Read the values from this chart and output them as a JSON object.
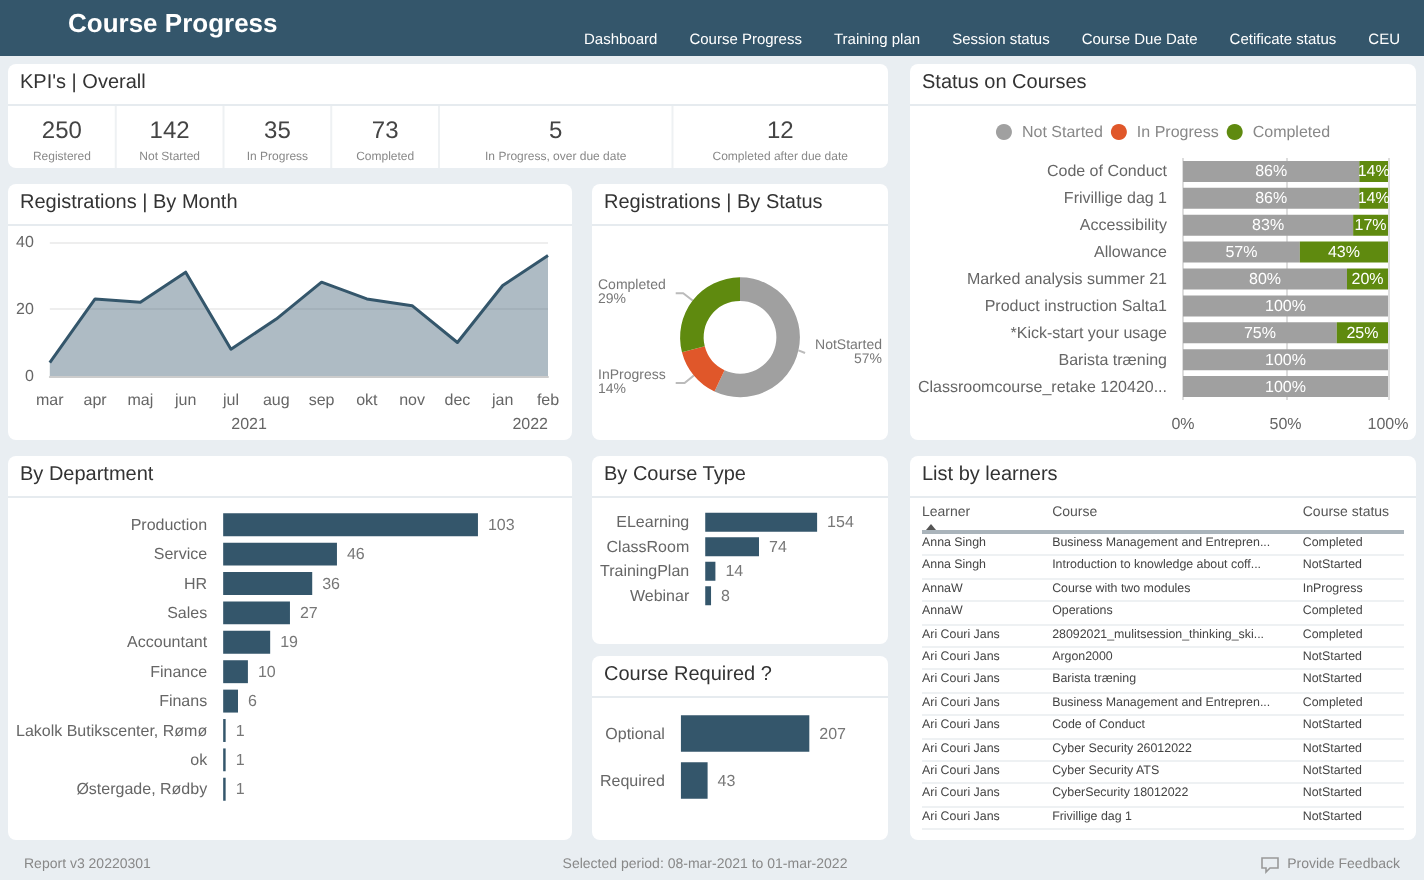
{
  "chart_data": [
    {
      "type": "other",
      "title": "Course Progress",
      "annotations": [
        "Dashboard",
        "Course Progress",
        "Training plan",
        "Session status",
        "Course Due Date",
        "Cetificate status",
        "CEU"
      ]
    },
    {
      "type": "other",
      "title": "KPI's | Overall",
      "categories": [
        "Registered",
        "Not Started",
        "In Progress",
        "Completed",
        "In Progress, over due date",
        "Completed after due date"
      ],
      "values": [
        250,
        142,
        35,
        73,
        5,
        12
      ],
      "data_labels": true
    },
    {
      "type": "bar",
      "title": "Status on Courses",
      "orientation": "horizontal",
      "stacked": true,
      "legend": "top",
      "grid": "x",
      "xlim": [
        0,
        100
      ],
      "xticks": [
        {
          "value": 0,
          "label": "0%"
        },
        {
          "value": 50,
          "label": "50%"
        },
        {
          "value": 100,
          "label": "100%"
        }
      ],
      "categories": [
        "Code of Conduct",
        "Frivillige dag 1",
        "Accessibility",
        "Allowance",
        "Marked analysis summer 21",
        "Product instruction Salta1",
        "*Kick-start your usage",
        "Barista træning",
        "Classroomcourse_retake 120420..."
      ],
      "series": [
        {
          "name": "Not Started",
          "color": "#a0a0a0",
          "values": [
            86,
            86,
            83,
            57,
            80,
            100,
            75,
            100,
            100
          ],
          "value_labels": [
            "86%",
            "86%",
            "83%",
            "57%",
            "80%",
            "100%",
            "75%",
            "100%",
            "100%"
          ]
        },
        {
          "name": "In Progress",
          "color": "#e0572a",
          "values": [
            0,
            0,
            0,
            0,
            0,
            0,
            0,
            0,
            0
          ]
        },
        {
          "name": "Completed",
          "color": "#5f8a0f",
          "values": [
            14,
            14,
            17,
            43,
            20,
            0,
            25,
            0,
            0
          ],
          "value_labels": [
            "14%",
            "14%",
            "17%",
            "43%",
            "20%",
            null,
            "25%",
            null,
            null
          ]
        }
      ]
    },
    {
      "type": "area",
      "title": "Registrations | By Month",
      "categories": [
        "mar",
        "apr",
        "maj",
        "jun",
        "jul",
        "aug",
        "sep",
        "okt",
        "nov",
        "dec",
        "jan",
        "feb"
      ],
      "values": [
        4,
        23,
        22,
        31,
        8,
        17,
        28,
        23,
        21,
        10,
        27,
        36
      ],
      "color": "#34566b",
      "ylim": [
        0,
        40
      ],
      "yticks": [
        0,
        20,
        40
      ],
      "grid": "y",
      "marker": "none",
      "annotations": [
        "2021",
        "2022"
      ]
    },
    {
      "type": "donut",
      "title": "Registrations | By Status",
      "categories": [
        "NotStarted",
        "InProgress",
        "Completed"
      ],
      "values": [
        57,
        14,
        29
      ],
      "colors": [
        "#a0a0a0",
        "#e0572a",
        "#5f8a0f"
      ],
      "value_labels": [
        "57%",
        "14%",
        "29%"
      ]
    },
    {
      "type": "bar",
      "title": "By Department",
      "orientation": "horizontal",
      "data_labels": true,
      "color": "#34566b",
      "categories": [
        "Production",
        "Service",
        "HR",
        "Sales",
        "Accountant",
        "Finance",
        "Finans",
        "Lakolk Butikscenter, Rømø",
        "ok",
        "Østergade, Rødby"
      ],
      "values": [
        103,
        46,
        36,
        27,
        19,
        10,
        6,
        1,
        1,
        1
      ]
    },
    {
      "type": "bar",
      "title": "By Course Type",
      "orientation": "horizontal",
      "data_labels": true,
      "color": "#34566b",
      "categories": [
        "ELearning",
        "ClassRoom",
        "TrainingPlan",
        "Webinar"
      ],
      "values": [
        154,
        74,
        14,
        8
      ]
    },
    {
      "type": "bar",
      "title": "Course Required ?",
      "orientation": "horizontal",
      "data_labels": true,
      "color": "#34566b",
      "categories": [
        "Optional",
        "Required"
      ],
      "values": [
        207,
        43
      ]
    },
    {
      "type": "other",
      "title": "List by learners",
      "categories": [
        "Learner",
        "Course",
        "Course status"
      ],
      "annotations": [
        "Anna Singh",
        "Business Management and Entrepren...",
        "Completed",
        "Anna Singh",
        "Introduction to knowledge about coff...",
        "NotStarted",
        "AnnaW",
        "Course with two modules",
        "InProgress",
        "AnnaW",
        "Operations",
        "Completed",
        "Ari Couri Jans",
        "28092021_mulitsession_thinking_ski...",
        "Completed",
        "Ari Couri Jans",
        "Argon2000",
        "NotStarted",
        "Ari Couri Jans",
        "Barista træning",
        "NotStarted",
        "Ari Couri Jans",
        "Business Management and Entrepren...",
        "Completed",
        "Ari Couri Jans",
        "Code of Conduct",
        "NotStarted",
        "Ari Couri Jans",
        "Cyber Security 26012022",
        "NotStarted",
        "Ari Couri Jans",
        "Cyber Security ATS",
        "NotStarted",
        "Ari Couri Jans",
        "CyberSecurity 18012022",
        "NotStarted",
        "Ari Couri Jans",
        "Frivillige dag 1",
        "NotStarted"
      ]
    },
    {
      "type": "other",
      "annotations": [
        "Report v3 20220301",
        "Selected period: 08-mar-2021 to 01-mar-2022",
        "Provide Feedback"
      ]
    }
  ]
}
